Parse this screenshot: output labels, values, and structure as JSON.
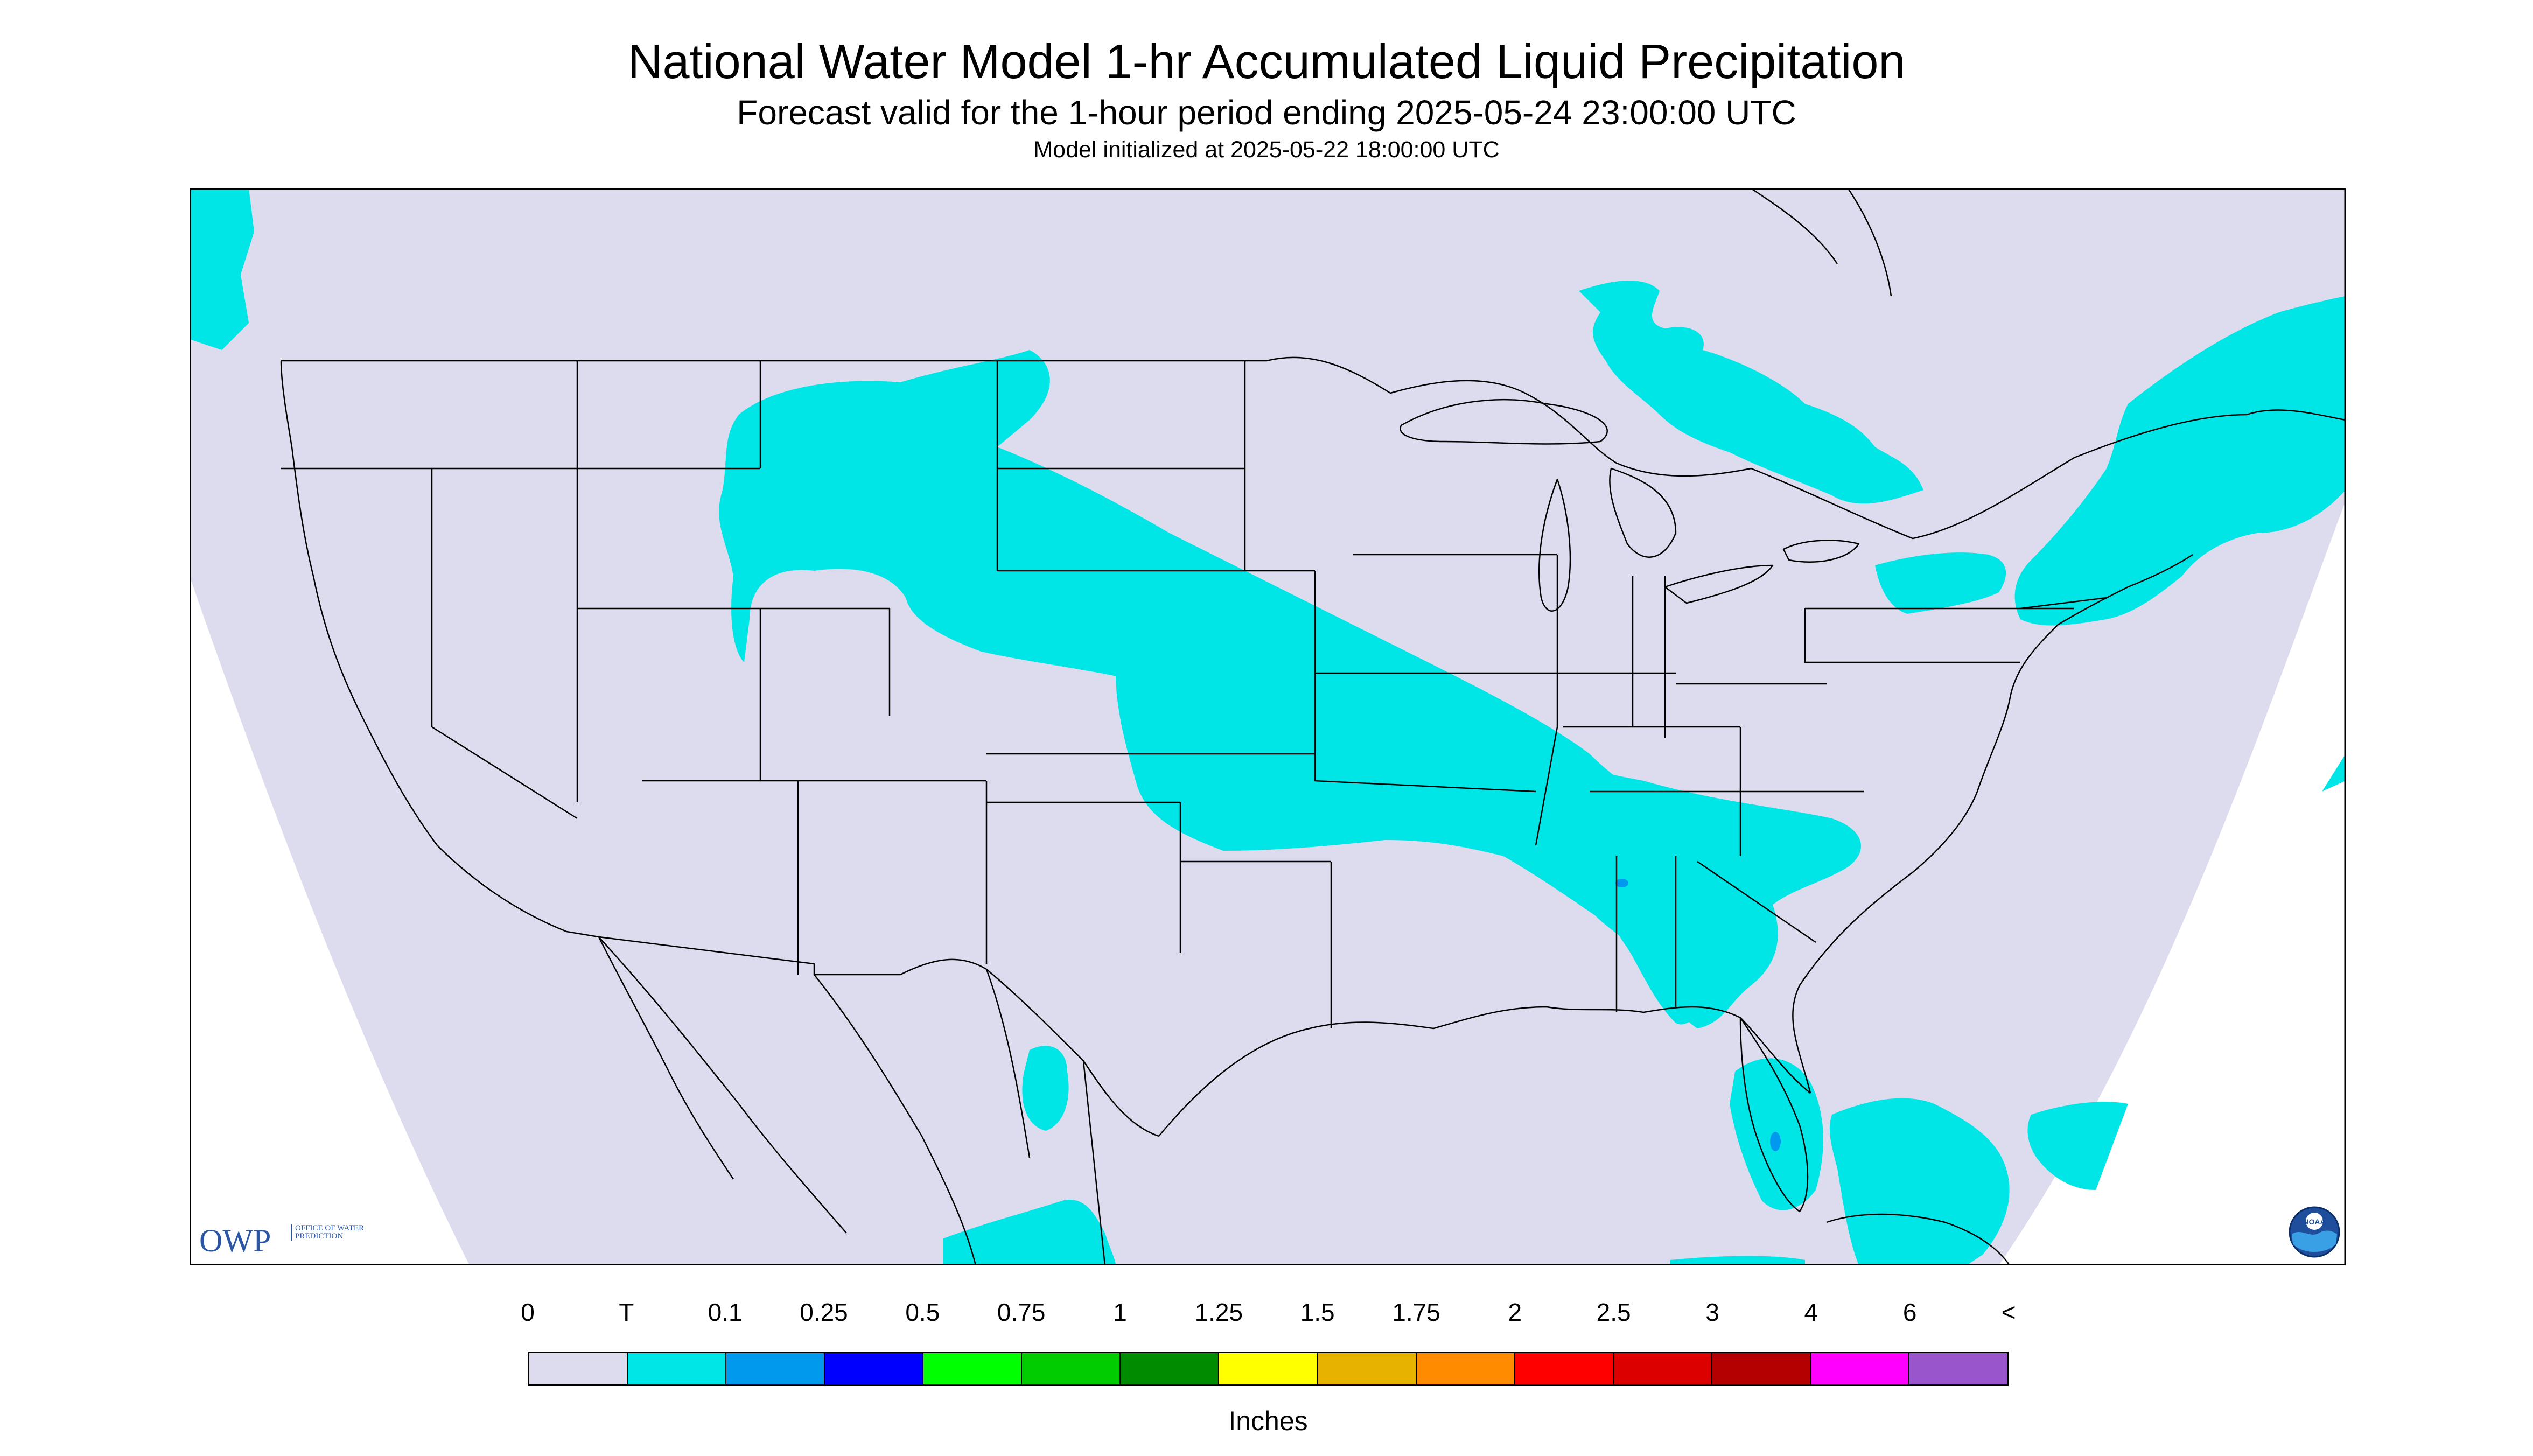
{
  "header": {
    "title": "National Water Model 1-hr Accumulated Liquid Precipitation",
    "subtitle": "Forecast valid for the 1-hour period ending 2025-05-24 23:00:00 UTC",
    "init": "Model initialized at 2025-05-22 18:00:00 UTC"
  },
  "map": {
    "background_color": "#dcdcee",
    "outside_color": "#ffffff",
    "boundary_color": "#000000",
    "precip_regions": [
      {
        "region": "northern plains / Rockies band",
        "category": "T"
      },
      {
        "region": "central plains to Tennessee valley band",
        "category": "T"
      },
      {
        "region": "Alabama / Georgia",
        "category": "T"
      },
      {
        "region": "Ontario / Quebec",
        "category": "T"
      },
      {
        "region": "New England / Maritimes",
        "category": "T"
      },
      {
        "region": "Florida peninsula",
        "category": "T"
      },
      {
        "region": "Caribbean / Cuba",
        "category": "T"
      },
      {
        "region": "northern Mexico",
        "category": "T"
      },
      {
        "region": "Pacific Northwest coast",
        "category": "T"
      },
      {
        "region": "small embedded cells",
        "category": "0.1"
      }
    ]
  },
  "logos": {
    "owp_main": "OWP",
    "owp_sub": "OFFICE OF WATER PREDICTION",
    "noaa": "NOAA"
  },
  "legend": {
    "tick_labels": [
      "0",
      "T",
      "0.1",
      "0.25",
      "0.5",
      "0.75",
      "1",
      "1.25",
      "1.5",
      "1.75",
      "2",
      "2.5",
      "3",
      "4",
      "6",
      "<"
    ],
    "colors": [
      "#dcdcee",
      "#00e6e6",
      "#0099ee",
      "#0000ff",
      "#00ff00",
      "#00cc00",
      "#008c00",
      "#ffff00",
      "#e6b400",
      "#ff8c00",
      "#ff0000",
      "#dc0000",
      "#b40000",
      "#ff00ff",
      "#9955cc"
    ],
    "unit": "Inches"
  },
  "chart_data": {
    "type": "map",
    "title": "National Water Model 1-hr Accumulated Liquid Precipitation",
    "subtitle": "Forecast valid for the 1-hour period ending 2025-05-24 23:00:00 UTC",
    "colorbar_bins": [
      "0",
      "T",
      "0.1",
      "0.25",
      "0.5",
      "0.75",
      "1",
      "1.25",
      "1.5",
      "1.75",
      "2",
      "2.5",
      "3",
      "4",
      "6",
      "<"
    ],
    "unit": "Inches"
  }
}
